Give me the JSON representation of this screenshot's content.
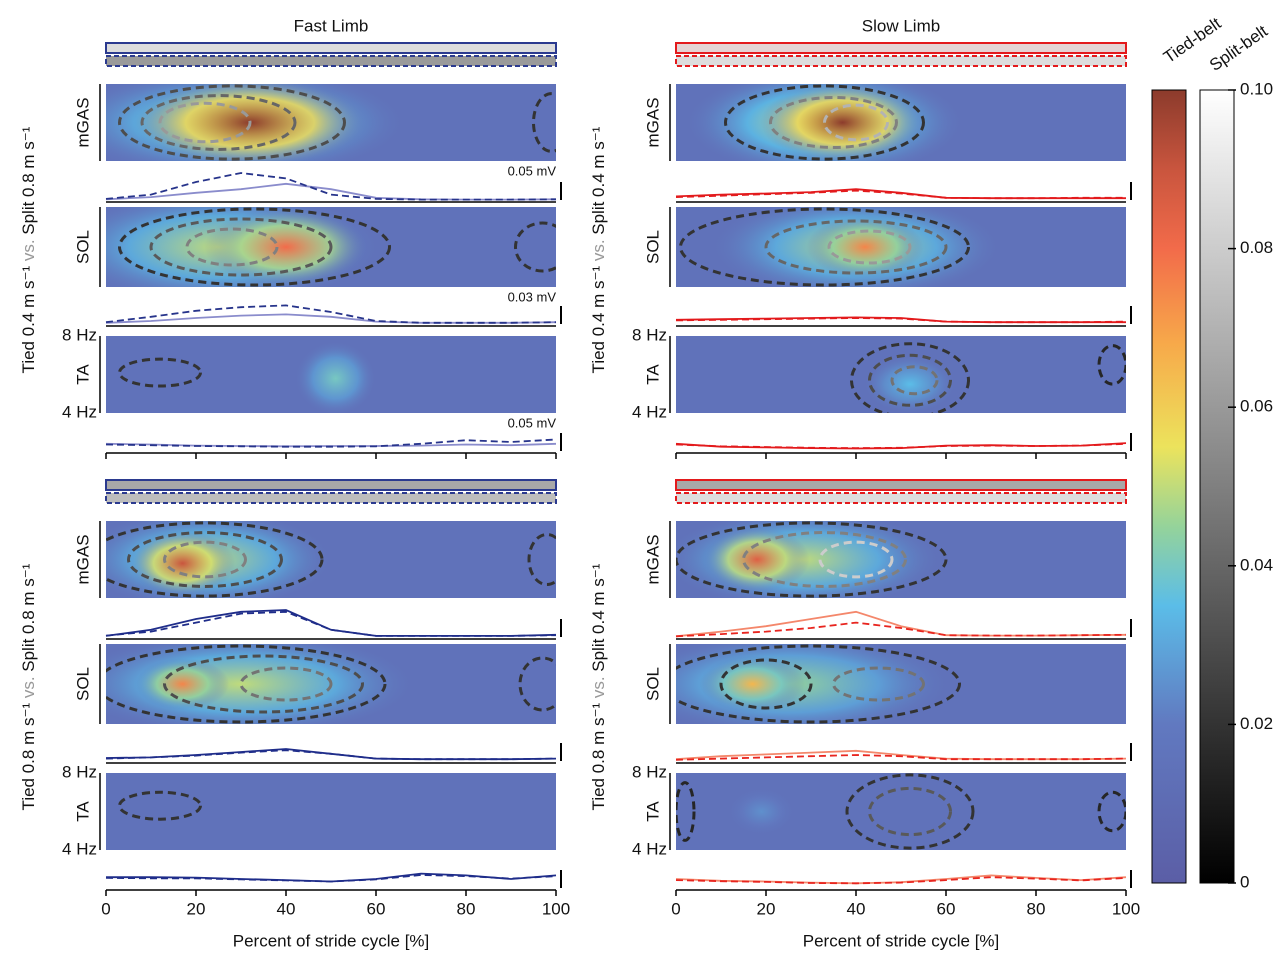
{
  "chart_data": [
    {
      "type": "spectrogram",
      "title": "Fast Limb",
      "row_label": [
        "Tied 0.4 m s⁻¹",
        "vs.",
        "Split 0.8 m s⁻¹"
      ],
      "tied_color": "#8a8ccc",
      "split_color": "#27348b",
      "header": {
        "stroke": "#2b3a8f",
        "tied_fill": "#dddddd",
        "split_fill": "#9a9a9a"
      },
      "background": 0.015,
      "xlim": [
        0,
        100
      ],
      "xticks": [
        0,
        20,
        40,
        60,
        80,
        100
      ],
      "ylim": [
        4,
        8
      ],
      "yticks": [
        {
          "value": 4,
          "label": "4 Hz"
        },
        {
          "value": 8,
          "label": "8 Hz"
        }
      ],
      "trace_x": [
        0,
        10,
        20,
        30,
        40,
        50,
        60,
        70,
        80,
        90,
        100
      ],
      "muscles": [
        {
          "name": "mGAS",
          "scale": 0.05,
          "scale_label": "0.05 mV",
          "blobs": [
            [
              28,
              6,
              30,
              2.2,
              0.05
            ],
            [
              32,
              6,
              20,
              1.8,
              0.1
            ]
          ],
          "contours": [
            [
              28,
              6,
              25,
              1.9,
              0.03
            ],
            [
              25,
              6,
              17,
              1.4,
              0.04
            ],
            [
              22,
              6,
              10,
              1,
              0.06
            ],
            [
              99,
              6,
              4,
              1.5,
              0.02
            ]
          ],
          "tied": [
            0.002,
            0.008,
            0.02,
            0.03,
            0.045,
            0.03,
            0.006,
            0.002,
            0.001,
            0.001,
            0.002
          ],
          "split": [
            0.003,
            0.015,
            0.05,
            0.075,
            0.06,
            0.015,
            0.003,
            0.001,
            0.001,
            0.001,
            0.002
          ]
        },
        {
          "name": "SOL",
          "scale": 0.03,
          "scale_label": "0.03 mV",
          "blobs": [
            [
              25,
              6,
              28,
              2.2,
              0.05
            ],
            [
              40,
              6,
              14,
              1.5,
              0.08
            ]
          ],
          "contours": [
            [
              33,
              6,
              30,
              1.9,
              0.02
            ],
            [
              30,
              6,
              20,
              1.4,
              0.035
            ],
            [
              28,
              6,
              10,
              0.9,
              0.05
            ],
            [
              97,
              6,
              6,
              1.2,
              0.02
            ]
          ],
          "tied": [
            0.002,
            0.005,
            0.01,
            0.014,
            0.016,
            0.012,
            0.004,
            0.002,
            0.002,
            0.002,
            0.003
          ],
          "split": [
            0.003,
            0.012,
            0.022,
            0.028,
            0.031,
            0.02,
            0.005,
            0.002,
            0.002,
            0.002,
            0.003
          ]
        },
        {
          "name": "TA",
          "scale": 0.05,
          "scale_label": "0.05 mV",
          "blobs": [
            [
              51,
              5.8,
              7,
              1.5,
              0.04
            ]
          ],
          "contours": [
            [
              12,
              6.1,
              9,
              0.7,
              0.02
            ]
          ],
          "tied": [
            0.02,
            0.018,
            0.015,
            0.014,
            0.013,
            0.014,
            0.014,
            0.015,
            0.018,
            0.016,
            0.02
          ],
          "split": [
            0.018,
            0.016,
            0.014,
            0.013,
            0.012,
            0.012,
            0.013,
            0.02,
            0.03,
            0.025,
            0.032
          ]
        }
      ]
    },
    {
      "type": "spectrogram",
      "title": "Slow Limb",
      "row_label": [
        "Tied 0.4 m s⁻¹",
        "vs.",
        "Split 0.4 m s⁻¹"
      ],
      "tied_color": "#e31a1c",
      "split_color": "#e31a1c",
      "header": {
        "stroke": "#e31a1c",
        "tied_fill": "#e4d4d4",
        "split_fill": "#dddddd"
      },
      "background": 0.015,
      "xlim": [
        0,
        100
      ],
      "xticks": [
        0,
        20,
        40,
        60,
        80,
        100
      ],
      "ylim": [
        4,
        8
      ],
      "yticks": [
        {
          "value": 4,
          "label": "4 Hz"
        },
        {
          "value": 8,
          "label": "8 Hz"
        }
      ],
      "trace_x": [
        0,
        10,
        20,
        30,
        40,
        50,
        60,
        70,
        80,
        90,
        100
      ],
      "muscles": [
        {
          "name": "mGAS",
          "scale": 0.05,
          "blobs": [
            [
              33,
              6,
              24,
              2.2,
              0.055
            ],
            [
              37,
              6,
              14,
              1.6,
              0.1
            ]
          ],
          "contours": [
            [
              33,
              6,
              22,
              1.9,
              0.02
            ],
            [
              35,
              6,
              14,
              1.3,
              0.05
            ],
            [
              40,
              6,
              7,
              0.9,
              0.07
            ]
          ],
          "tied": [
            0.01,
            0.015,
            0.018,
            0.022,
            0.03,
            0.02,
            0.006,
            0.005,
            0.005,
            0.005,
            0.005
          ],
          "split": [
            0.008,
            0.012,
            0.016,
            0.02,
            0.026,
            0.018,
            0.006,
            0.005,
            0.005,
            0.006,
            0.006
          ]
        },
        {
          "name": "SOL",
          "scale": 0.03,
          "blobs": [
            [
              40,
              6,
              25,
              2,
              0.05
            ],
            [
              42,
              6,
              10,
              1.2,
              0.075
            ]
          ],
          "contours": [
            [
              33,
              6,
              32,
              1.9,
              0.02
            ],
            [
              40,
              6,
              20,
              1.3,
              0.04
            ],
            [
              43,
              6,
              9,
              0.8,
              0.06
            ]
          ],
          "tied": [
            0.007,
            0.008,
            0.009,
            0.01,
            0.011,
            0.01,
            0.004,
            0.003,
            0.003,
            0.003,
            0.003
          ],
          "split": [
            0.006,
            0.007,
            0.008,
            0.009,
            0.01,
            0.009,
            0.004,
            0.003,
            0.003,
            0.003,
            0.004
          ]
        },
        {
          "name": "TA",
          "scale": 0.05,
          "blobs": [
            [
              52,
              5.5,
              8,
              1.2,
              0.035
            ]
          ],
          "contours": [
            [
              52,
              5.7,
              13,
              1.9,
              0.02
            ],
            [
              52,
              5.7,
              9,
              1.3,
              0.03
            ],
            [
              53,
              5.7,
              5,
              0.7,
              0.045
            ],
            [
              97,
              6.5,
              3,
              1,
              0.015
            ]
          ],
          "tied": [
            0.02,
            0.012,
            0.01,
            0.008,
            0.007,
            0.008,
            0.015,
            0.016,
            0.014,
            0.015,
            0.022
          ],
          "split": [
            0.018,
            0.013,
            0.011,
            0.009,
            0.008,
            0.009,
            0.014,
            0.015,
            0.014,
            0.015,
            0.02
          ]
        }
      ]
    },
    {
      "type": "spectrogram",
      "row_label": [
        "Tied 0.8 m s⁻¹",
        "vs.",
        "Split 0.8 m s⁻¹"
      ],
      "tied_color": "#1f2d8a",
      "split_color": "#1f2d8a",
      "header": {
        "stroke": "#2b3a8f",
        "tied_fill": "#a8a8a8",
        "split_fill": "#bdbdbd"
      },
      "background": 0.015,
      "xlim": [
        0,
        100
      ],
      "xticks": [
        0,
        20,
        40,
        60,
        80,
        100
      ],
      "ylim": [
        4,
        8
      ],
      "yticks": [
        {
          "value": 4,
          "label": "4 Hz"
        },
        {
          "value": 8,
          "label": "8 Hz"
        }
      ],
      "x_label": "Percent of stride cycle [%]",
      "trace_x": [
        0,
        10,
        20,
        30,
        40,
        50,
        60,
        70,
        80,
        90,
        100
      ],
      "muscles": [
        {
          "name": "mGAS",
          "scale": 0.05,
          "blobs": [
            [
              22,
              6,
              22,
              2,
              0.05
            ],
            [
              17,
              5.8,
              9,
              1.3,
              0.09
            ]
          ],
          "contours": [
            [
              22,
              6,
              26,
              1.9,
              0.02
            ],
            [
              22,
              6,
              17,
              1.4,
              0.03
            ],
            [
              22,
              6,
              9,
              0.9,
              0.05
            ],
            [
              98,
              6,
              4,
              1.3,
              0.02
            ]
          ],
          "tied": [
            0.003,
            0.02,
            0.05,
            0.07,
            0.075,
            0.02,
            0.003,
            0.003,
            0.003,
            0.003,
            0.006
          ],
          "split": [
            0.004,
            0.015,
            0.04,
            0.065,
            0.07,
            0.02,
            0.003,
            0.003,
            0.003,
            0.003,
            0.005
          ]
        },
        {
          "name": "SOL",
          "scale": 0.03,
          "blobs": [
            [
              30,
              6,
              30,
              2,
              0.05
            ],
            [
              17,
              6,
              8,
              1,
              0.075
            ]
          ],
          "contours": [
            [
              30,
              6,
              32,
              1.9,
              0.02
            ],
            [
              35,
              6,
              22,
              1.4,
              0.03
            ],
            [
              40,
              6,
              10,
              0.8,
              0.045
            ],
            [
              97,
              6,
              5,
              1.3,
              0.02
            ]
          ],
          "tied": [
            0.005,
            0.006,
            0.01,
            0.015,
            0.02,
            0.012,
            0.004,
            0.003,
            0.003,
            0.003,
            0.004
          ],
          "split": [
            0.004,
            0.006,
            0.009,
            0.014,
            0.018,
            0.012,
            0.004,
            0.003,
            0.003,
            0.003,
            0.004
          ]
        },
        {
          "name": "TA",
          "scale": 0.05,
          "blobs": [],
          "contours": [
            [
              12,
              6.3,
              9,
              0.7,
              0.02
            ]
          ],
          "tied": [
            0.03,
            0.03,
            0.029,
            0.025,
            0.022,
            0.018,
            0.025,
            0.04,
            0.035,
            0.025,
            0.035
          ],
          "split": [
            0.028,
            0.027,
            0.027,
            0.024,
            0.021,
            0.018,
            0.024,
            0.036,
            0.033,
            0.026,
            0.033
          ]
        }
      ]
    },
    {
      "type": "spectrogram",
      "row_label": [
        "Tied 0.8 m s⁻¹",
        "vs.",
        "Split 0.4 m s⁻¹"
      ],
      "tied_color": "#f4876b",
      "split_color": "#e8251f",
      "header": {
        "stroke": "#e31a1c",
        "tied_fill": "#a8a8a8",
        "split_fill": "#dddddd"
      },
      "background": 0.015,
      "xlim": [
        0,
        100
      ],
      "xticks": [
        0,
        20,
        40,
        60,
        80,
        100
      ],
      "ylim": [
        4,
        8
      ],
      "yticks": [
        {
          "value": 4,
          "label": "4 Hz"
        },
        {
          "value": 8,
          "label": "8 Hz"
        }
      ],
      "x_label": "Percent of stride cycle [%]",
      "trace_x": [
        0,
        10,
        20,
        30,
        40,
        50,
        60,
        70,
        80,
        90,
        100
      ],
      "muscles": [
        {
          "name": "mGAS",
          "scale": 0.05,
          "blobs": [
            [
              28,
              6,
              24,
              2,
              0.05
            ],
            [
              18,
              6,
              9,
              1.3,
              0.085
            ]
          ],
          "contours": [
            [
              30,
              6,
              30,
              1.9,
              0.02
            ],
            [
              33,
              6,
              18,
              1.4,
              0.05
            ],
            [
              40,
              6,
              8,
              0.9,
              0.08
            ]
          ],
          "tied": [
            0.002,
            0.015,
            0.03,
            0.05,
            0.07,
            0.03,
            0.005,
            0.004,
            0.004,
            0.005,
            0.006
          ],
          "split": [
            0.002,
            0.008,
            0.015,
            0.025,
            0.04,
            0.025,
            0.005,
            0.004,
            0.004,
            0.005,
            0.006
          ]
        },
        {
          "name": "SOL",
          "scale": 0.03,
          "blobs": [
            [
              25,
              6,
              28,
              2,
              0.045
            ],
            [
              17,
              6,
              9,
              1.1,
              0.065
            ]
          ],
          "contours": [
            [
              30,
              6,
              33,
              1.9,
              0.02
            ],
            [
              20,
              6,
              10,
              1.2,
              0.02
            ],
            [
              45,
              6,
              10,
              0.8,
              0.045
            ]
          ],
          "tied": [
            0.003,
            0.008,
            0.011,
            0.014,
            0.017,
            0.01,
            0.004,
            0.003,
            0.003,
            0.003,
            0.004
          ],
          "split": [
            0.002,
            0.004,
            0.006,
            0.008,
            0.01,
            0.008,
            0.003,
            0.003,
            0.003,
            0.003,
            0.004
          ]
        },
        {
          "name": "TA",
          "scale": 0.05,
          "blobs": [
            [
              19,
              6,
              6,
              1,
              0.025
            ]
          ],
          "contours": [
            [
              52,
              6,
              14,
              1.9,
              0.02
            ],
            [
              52,
              6,
              9,
              1.2,
              0.035
            ],
            [
              97,
              6,
              3,
              1,
              0.015
            ],
            [
              2,
              6,
              2,
              1.5,
              0.015
            ]
          ],
          "tied": [
            0.025,
            0.02,
            0.018,
            0.015,
            0.013,
            0.016,
            0.025,
            0.035,
            0.028,
            0.022,
            0.03
          ],
          "split": [
            0.022,
            0.019,
            0.017,
            0.014,
            0.013,
            0.015,
            0.022,
            0.03,
            0.026,
            0.021,
            0.028
          ]
        }
      ]
    }
  ],
  "colorbar": {
    "ylim": [
      0,
      0.1
    ],
    "yticks": [
      0,
      0.02,
      0.04,
      0.06,
      0.08,
      {
        "value": 0.1,
        "label": "0.10"
      }
    ],
    "tied_label": "Tied-belt",
    "split_label": "Split-belt"
  }
}
